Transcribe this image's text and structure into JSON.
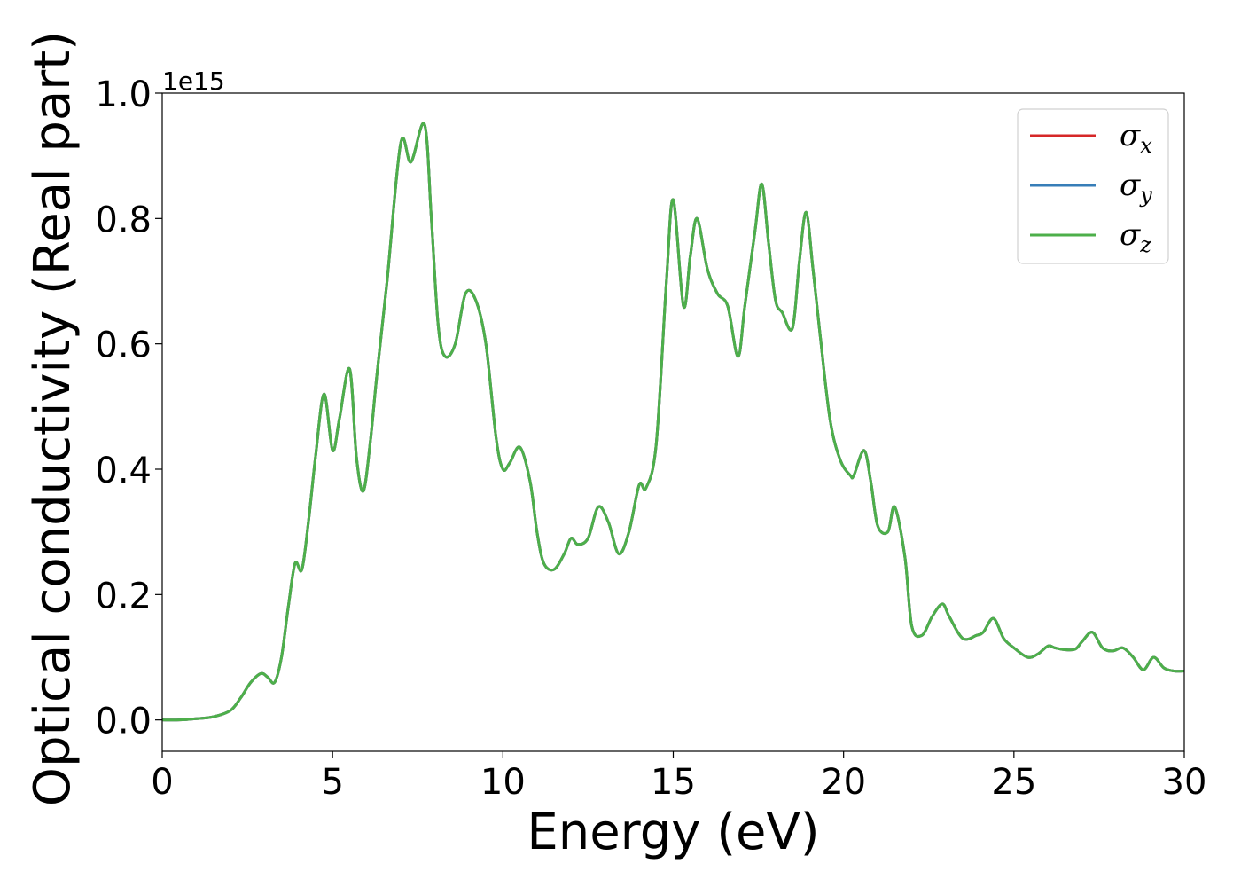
{
  "chart_data": {
    "type": "line",
    "title": "",
    "xlabel": "Energy (eV)",
    "ylabel": "Optical conductivity (Real part)",
    "y_offset_label": "1e15",
    "xlim": [
      0,
      30
    ],
    "ylim": [
      -0.05,
      1.0
    ],
    "xticks": [
      0,
      5,
      10,
      15,
      20,
      25,
      30
    ],
    "yticks": [
      0.0,
      0.2,
      0.4,
      0.6,
      0.8,
      1.0
    ],
    "xtick_labels": [
      "0",
      "5",
      "10",
      "15",
      "20",
      "25",
      "30"
    ],
    "ytick_labels": [
      "0.0",
      "0.2",
      "0.4",
      "0.6",
      "0.8",
      "1.0"
    ],
    "grid": false,
    "legend_position": "top-right",
    "x": [
      0,
      0.5,
      1.0,
      1.5,
      2.0,
      2.3,
      2.6,
      2.9,
      3.1,
      3.3,
      3.5,
      3.7,
      3.9,
      4.1,
      4.3,
      4.5,
      4.75,
      5.0,
      5.2,
      5.5,
      5.7,
      5.9,
      6.1,
      6.3,
      6.6,
      7.0,
      7.3,
      7.7,
      7.9,
      8.1,
      8.3,
      8.6,
      8.9,
      9.2,
      9.5,
      9.8,
      10.0,
      10.2,
      10.5,
      10.8,
      11.0,
      11.2,
      11.5,
      11.8,
      12.0,
      12.2,
      12.5,
      12.8,
      13.1,
      13.4,
      13.7,
      14.0,
      14.2,
      14.5,
      14.8,
      15.0,
      15.3,
      15.5,
      15.7,
      16.0,
      16.3,
      16.6,
      16.9,
      17.1,
      17.4,
      17.6,
      17.8,
      18.0,
      18.2,
      18.5,
      18.7,
      18.9,
      19.1,
      19.3,
      19.6,
      19.9,
      20.2,
      20.3,
      20.6,
      20.8,
      21.0,
      21.3,
      21.5,
      21.8,
      22.0,
      22.3,
      22.6,
      22.9,
      23.1,
      23.5,
      23.9,
      24.1,
      24.4,
      24.7,
      25.0,
      25.4,
      25.7,
      26.0,
      26.2,
      26.5,
      26.8,
      27.0,
      27.3,
      27.6,
      27.9,
      28.2,
      28.5,
      28.8,
      29.1,
      29.4,
      29.7,
      30.0
    ],
    "series": [
      {
        "name": "σx",
        "color": "#d62728",
        "values": [
          0.0,
          0.0,
          0.002,
          0.005,
          0.015,
          0.035,
          0.06,
          0.074,
          0.068,
          0.06,
          0.1,
          0.18,
          0.25,
          0.24,
          0.32,
          0.42,
          0.52,
          0.43,
          0.48,
          0.56,
          0.42,
          0.365,
          0.44,
          0.55,
          0.7,
          0.92,
          0.89,
          0.95,
          0.8,
          0.63,
          0.58,
          0.6,
          0.68,
          0.67,
          0.6,
          0.45,
          0.4,
          0.41,
          0.435,
          0.38,
          0.3,
          0.25,
          0.24,
          0.265,
          0.29,
          0.28,
          0.29,
          0.34,
          0.315,
          0.265,
          0.3,
          0.375,
          0.37,
          0.44,
          0.7,
          0.83,
          0.66,
          0.74,
          0.8,
          0.72,
          0.68,
          0.66,
          0.58,
          0.66,
          0.78,
          0.855,
          0.76,
          0.67,
          0.65,
          0.625,
          0.73,
          0.81,
          0.72,
          0.62,
          0.48,
          0.415,
          0.39,
          0.39,
          0.43,
          0.38,
          0.31,
          0.3,
          0.34,
          0.26,
          0.15,
          0.135,
          0.165,
          0.185,
          0.165,
          0.13,
          0.135,
          0.14,
          0.162,
          0.13,
          0.115,
          0.1,
          0.105,
          0.118,
          0.115,
          0.112,
          0.113,
          0.125,
          0.14,
          0.115,
          0.11,
          0.115,
          0.1,
          0.08,
          0.1,
          0.083,
          0.078,
          0.078
        ]
      },
      {
        "name": "σy",
        "color": "#377eb8",
        "values": [
          0.0,
          0.0,
          0.002,
          0.005,
          0.015,
          0.035,
          0.06,
          0.074,
          0.068,
          0.06,
          0.1,
          0.18,
          0.25,
          0.24,
          0.32,
          0.42,
          0.52,
          0.43,
          0.48,
          0.56,
          0.42,
          0.365,
          0.44,
          0.55,
          0.7,
          0.92,
          0.89,
          0.95,
          0.8,
          0.63,
          0.58,
          0.6,
          0.68,
          0.67,
          0.6,
          0.45,
          0.4,
          0.41,
          0.435,
          0.38,
          0.3,
          0.25,
          0.24,
          0.265,
          0.29,
          0.28,
          0.29,
          0.34,
          0.315,
          0.265,
          0.3,
          0.375,
          0.37,
          0.44,
          0.7,
          0.83,
          0.66,
          0.74,
          0.8,
          0.72,
          0.68,
          0.66,
          0.58,
          0.66,
          0.78,
          0.855,
          0.76,
          0.67,
          0.65,
          0.625,
          0.73,
          0.81,
          0.72,
          0.62,
          0.48,
          0.415,
          0.39,
          0.39,
          0.43,
          0.38,
          0.31,
          0.3,
          0.34,
          0.26,
          0.15,
          0.135,
          0.165,
          0.185,
          0.165,
          0.13,
          0.135,
          0.14,
          0.162,
          0.13,
          0.115,
          0.1,
          0.105,
          0.118,
          0.115,
          0.112,
          0.113,
          0.125,
          0.14,
          0.115,
          0.11,
          0.115,
          0.1,
          0.08,
          0.1,
          0.083,
          0.078,
          0.078
        ]
      },
      {
        "name": "σz",
        "color": "#4daf4a",
        "values": [
          0.0,
          0.0,
          0.002,
          0.005,
          0.015,
          0.035,
          0.06,
          0.074,
          0.068,
          0.06,
          0.1,
          0.18,
          0.25,
          0.24,
          0.32,
          0.42,
          0.52,
          0.43,
          0.48,
          0.56,
          0.42,
          0.365,
          0.44,
          0.55,
          0.7,
          0.92,
          0.89,
          0.95,
          0.8,
          0.63,
          0.58,
          0.6,
          0.68,
          0.67,
          0.6,
          0.45,
          0.4,
          0.41,
          0.435,
          0.38,
          0.3,
          0.25,
          0.24,
          0.265,
          0.29,
          0.28,
          0.29,
          0.34,
          0.315,
          0.265,
          0.3,
          0.375,
          0.37,
          0.44,
          0.7,
          0.83,
          0.66,
          0.74,
          0.8,
          0.72,
          0.68,
          0.66,
          0.58,
          0.66,
          0.78,
          0.855,
          0.76,
          0.67,
          0.65,
          0.625,
          0.73,
          0.81,
          0.72,
          0.62,
          0.48,
          0.415,
          0.39,
          0.39,
          0.43,
          0.38,
          0.31,
          0.3,
          0.34,
          0.26,
          0.15,
          0.135,
          0.165,
          0.185,
          0.165,
          0.13,
          0.135,
          0.14,
          0.162,
          0.13,
          0.115,
          0.1,
          0.105,
          0.118,
          0.115,
          0.112,
          0.113,
          0.125,
          0.14,
          0.115,
          0.11,
          0.115,
          0.1,
          0.08,
          0.1,
          0.083,
          0.078,
          0.078
        ]
      }
    ],
    "legend": [
      {
        "symbol": "σ",
        "subscript": "x",
        "color": "#d62728"
      },
      {
        "symbol": "σ",
        "subscript": "y",
        "color": "#377eb8"
      },
      {
        "symbol": "σ",
        "subscript": "z",
        "color": "#4daf4a"
      }
    ]
  }
}
